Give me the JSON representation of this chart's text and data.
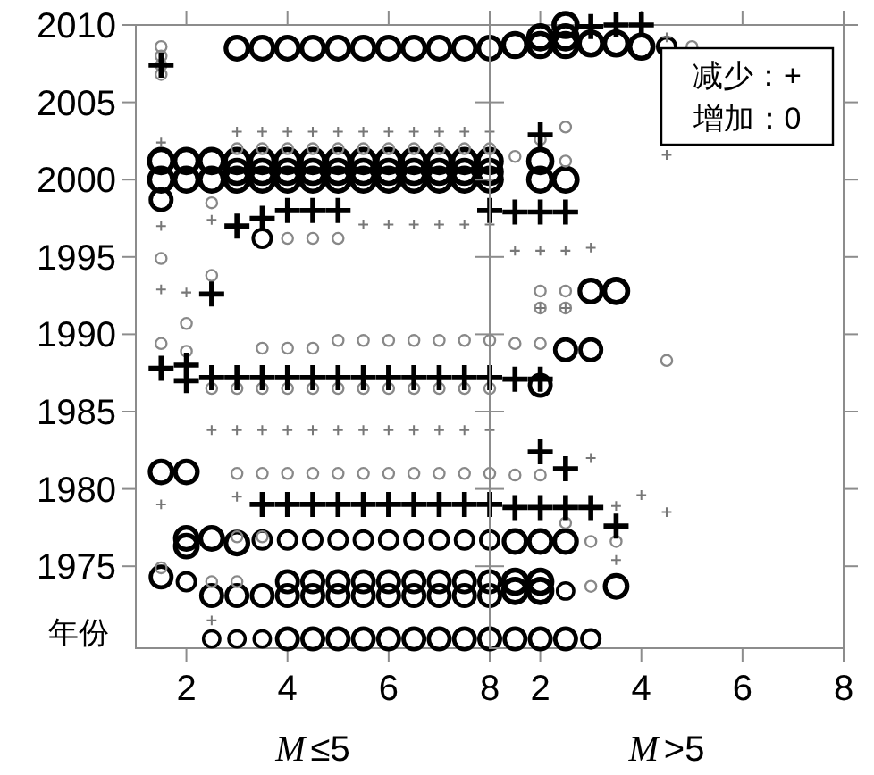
{
  "chart_data": [
    {
      "type": "bubble",
      "xlabel": "M≤5",
      "ylabel": "年份",
      "xlim": [
        1,
        8
      ],
      "xticks": [
        2,
        4,
        6,
        8
      ],
      "ylim": [
        1969.7,
        2010
      ],
      "yticks": [
        1975,
        1980,
        1985,
        1990,
        1995,
        2000,
        2005,
        2010
      ],
      "tick_labels": "xy",
      "series": [
        {
          "color": "#000000",
          "marker": "circle",
          "x": [
            3,
            3.5,
            4,
            4.5,
            5,
            5.5,
            6,
            6.5,
            7,
            7.5,
            8,
            1.5,
            2,
            2.5,
            3,
            3.5,
            4,
            4.5,
            5,
            5.5,
            6,
            6.5,
            7,
            7.5,
            8,
            1.5,
            2,
            2.5,
            3,
            3.5,
            4,
            4.5,
            5,
            5.5,
            6,
            6.5,
            7,
            7.5,
            8,
            3,
            3.5,
            4,
            4.5,
            5,
            5.5,
            6,
            6.5,
            7,
            7.5,
            8,
            1.5,
            3.5,
            1.5,
            2,
            2,
            2,
            2.5,
            3,
            3.5,
            4,
            4.5,
            5,
            5.5,
            6,
            6.5,
            7,
            7.5,
            8,
            1.5,
            2,
            2.5,
            3,
            3.5,
            4,
            4.5,
            5,
            5.5,
            6,
            6.5,
            7,
            7.5,
            8,
            4,
            4.5,
            5,
            5.5,
            6,
            6.5,
            7,
            7.5,
            8,
            2.5,
            3,
            3.5,
            4,
            4.5,
            5,
            5.5,
            6,
            6.5,
            7,
            7.5,
            8
          ],
          "values": [
            2008.5,
            2008.5,
            2008.5,
            2008.5,
            2008.5,
            2008.5,
            2008.5,
            2008.5,
            2008.5,
            2008.5,
            2008.5,
            2001.2,
            2001.2,
            2001.2,
            2001.2,
            2001.2,
            2001.2,
            2001.2,
            2001.2,
            2001.2,
            2001.2,
            2001.2,
            2001.2,
            2001.2,
            2001.2,
            2000,
            2000,
            2000,
            2000,
            2000,
            2000,
            2000,
            2000,
            2000,
            2000,
            2000,
            2000,
            2000,
            2000,
            2000.5,
            2000.5,
            2000.5,
            2000.5,
            2000.5,
            2000.5,
            2000.5,
            2000.5,
            2000.5,
            2000.5,
            2000.5,
            1998.7,
            1996.2,
            1981.1,
            1981.1,
            1976.8,
            1976.3,
            1976.8,
            1976.5,
            1976.7,
            1976.7,
            1976.7,
            1976.7,
            1976.7,
            1976.7,
            1976.7,
            1976.7,
            1976.7,
            1976.7,
            1974.3,
            1974,
            1973.1,
            1973.1,
            1973.1,
            1973.1,
            1973.1,
            1973.1,
            1973.1,
            1973.1,
            1973.1,
            1973.1,
            1973.1,
            1973.1,
            1974,
            1974,
            1974,
            1974,
            1974,
            1974,
            1974,
            1974,
            1974,
            1970.3,
            1970.3,
            1970.3,
            1970.3,
            1970.3,
            1970.3,
            1970.3,
            1970.3,
            1970.3,
            1970.3,
            1970.3,
            1970.3
          ],
          "sizes": [
            0.9,
            0.9,
            0.9,
            0.9,
            0.9,
            0.9,
            0.9,
            0.9,
            0.9,
            0.9,
            0.9,
            1,
            1,
            1,
            1,
            1,
            1,
            1,
            1,
            1,
            1,
            1,
            1,
            1,
            1,
            1,
            1,
            1,
            1,
            1,
            1,
            1,
            1,
            1,
            1,
            1,
            1,
            1,
            1,
            1,
            1,
            1,
            1,
            1,
            1,
            1,
            1,
            1,
            1,
            1,
            0.8,
            0.6,
            0.9,
            0.9,
            0.9,
            0.9,
            0.9,
            0.9,
            0.6,
            0.6,
            0.6,
            0.6,
            0.6,
            0.6,
            0.6,
            0.6,
            0.6,
            0.6,
            0.8,
            0.6,
            0.8,
            0.8,
            0.8,
            0.8,
            0.8,
            0.8,
            0.8,
            0.8,
            0.8,
            0.8,
            0.8,
            0.8,
            0.8,
            0.8,
            0.8,
            0.8,
            0.8,
            0.8,
            0.8,
            0.8,
            0.8,
            0.5,
            0.5,
            0.5,
            0.8,
            0.8,
            0.8,
            0.8,
            0.8,
            0.8,
            0.8,
            0.8,
            0.8
          ]
        },
        {
          "color": "#888888",
          "marker": "circle",
          "x": [
            1.5,
            1.5,
            1.5,
            1.5,
            3,
            3.5,
            4,
            4.5,
            5,
            5.5,
            6,
            6.5,
            7,
            7.5,
            8,
            2.5,
            4,
            4.5,
            5,
            1.5,
            2.5,
            2,
            1.5,
            2,
            3.5,
            4,
            4.5,
            5,
            5.5,
            6,
            6.5,
            7,
            7.5,
            8,
            2.5,
            3,
            3.5,
            4,
            4.5,
            5,
            5.5,
            6,
            6.5,
            7,
            7.5,
            8,
            3,
            3.5,
            4,
            4.5,
            5,
            5.5,
            6,
            6.5,
            7,
            7.5,
            8,
            3,
            3.5,
            1.5,
            2.5,
            3
          ],
          "values": [
            2008.6,
            2008,
            2007.4,
            2006.8,
            2002,
            2002,
            2002,
            2002,
            2002,
            2002,
            2002,
            2002,
            2002,
            2002,
            2002,
            1998.5,
            1996.2,
            1996.2,
            1996.2,
            1994.9,
            1993.8,
            1990.7,
            1989.4,
            1988.9,
            1989.1,
            1989.1,
            1989.1,
            1989.6,
            1989.6,
            1989.6,
            1989.6,
            1989.6,
            1989.6,
            1989.6,
            1986.5,
            1986.5,
            1986.5,
            1986.5,
            1986.5,
            1986.5,
            1986.5,
            1986.5,
            1986.5,
            1986.5,
            1986.5,
            1986.5,
            1981,
            1981,
            1981,
            1981,
            1981,
            1981,
            1981,
            1981,
            1981,
            1981,
            1981,
            1976.9,
            1976.9,
            1974.9,
            1974,
            1974
          ],
          "sizes": [
            0.22,
            0.22,
            0.22,
            0.22,
            0.22,
            0.22,
            0.22,
            0.22,
            0.22,
            0.22,
            0.22,
            0.22,
            0.22,
            0.22,
            0.22,
            0.22,
            0.22,
            0.22,
            0.22,
            0.22,
            0.22,
            0.22,
            0.22,
            0.22,
            0.22,
            0.22,
            0.22,
            0.22,
            0.22,
            0.22,
            0.22,
            0.22,
            0.22,
            0.22,
            0.22,
            0.22,
            0.22,
            0.22,
            0.22,
            0.22,
            0.22,
            0.22,
            0.22,
            0.22,
            0.22,
            0.22,
            0.22,
            0.22,
            0.22,
            0.22,
            0.22,
            0.22,
            0.22,
            0.22,
            0.22,
            0.22,
            0.22,
            0.22,
            0.22,
            0.22,
            0.22,
            0.22
          ]
        },
        {
          "type": "scatter",
          "color": "#000000",
          "marker": "cross",
          "x": [
            1.5,
            3,
            3.5,
            4,
            4.5,
            5,
            8,
            2.5,
            1.5,
            2,
            2,
            2.5,
            3,
            3.5,
            4,
            4.5,
            5,
            5.5,
            6,
            6.5,
            7,
            7.5,
            8,
            3.5,
            4,
            4.5,
            5,
            5.5,
            6,
            6.5,
            7,
            7.5,
            8
          ],
          "values": [
            2007.4,
            1997,
            1997.5,
            1998,
            1998,
            1998,
            1998,
            1992.6,
            1987.8,
            1988,
            1987,
            1987.2,
            1987.2,
            1987.2,
            1987.2,
            1987.2,
            1987.2,
            1987.2,
            1987.2,
            1987.2,
            1987.2,
            1987.2,
            1987.2,
            1979,
            1979,
            1979,
            1979,
            1979,
            1979,
            1979,
            1979,
            1979,
            1979
          ]
        },
        {
          "type": "scatter",
          "color": "#777777",
          "marker": "cross",
          "x": [
            3,
            3.5,
            4,
            4.5,
            5,
            5.5,
            6,
            6.5,
            7,
            7.5,
            8,
            1.5,
            2.5,
            1.5,
            5.5,
            6,
            6.5,
            7,
            7.5,
            8,
            1.5,
            2,
            2.5,
            3,
            3.5,
            4,
            4.5,
            5,
            5.5,
            6,
            6.5,
            7,
            7.5,
            8,
            1.5,
            3,
            2.5
          ],
          "values": [
            2003.1,
            2003.1,
            2003.1,
            2003.1,
            2003.1,
            2003.1,
            2003.1,
            2003.1,
            2003.1,
            2003.1,
            2003.1,
            2002.4,
            1997.4,
            1997,
            1997.1,
            1997.1,
            1997.1,
            1997.1,
            1997.1,
            1997.1,
            1992.9,
            1992.7,
            1983.8,
            1983.8,
            1983.8,
            1983.8,
            1983.8,
            1983.8,
            1983.8,
            1983.8,
            1983.8,
            1983.8,
            1983.8,
            1983.8,
            1979,
            1979.5,
            1971.5
          ]
        }
      ]
    },
    {
      "type": "bubble",
      "xlabel": "M>5",
      "xlim": [
        1,
        8
      ],
      "xticks": [
        2,
        4,
        6,
        8
      ],
      "ylim": [
        1969.7,
        2010
      ],
      "yticks": [
        1975,
        1980,
        1985,
        1990,
        1995,
        2000,
        2005,
        2010
      ],
      "tick_labels": "x",
      "annotations": [
        "减少：+",
        "增加：0"
      ],
      "series": [
        {
          "color": "#000000",
          "marker": "circle",
          "x": [
            1.5,
            2,
            2,
            2.5,
            2.5,
            2.5,
            3,
            3.5,
            4,
            4.5,
            2,
            2,
            2.5,
            3,
            3.5,
            2.5,
            3,
            2,
            1.5,
            2,
            2.5,
            1.5,
            2,
            1.5,
            2,
            2.5,
            3.5,
            1.5,
            2,
            2.5,
            3
          ],
          "values": [
            2008.7,
            2009.2,
            2008.7,
            2010,
            2009.2,
            2008.7,
            2008.8,
            2008.8,
            2008.6,
            2008.6,
            2001.2,
            2000,
            2000,
            1992.8,
            1992.8,
            1989,
            1989,
            1986.7,
            1976.6,
            1976.6,
            1976.6,
            1974,
            1974,
            1973.4,
            1973.4,
            1973.4,
            1973.7,
            1970.3,
            1970.3,
            1970.3,
            1970.3
          ],
          "sizes": [
            1,
            1,
            1,
            1,
            1,
            1,
            1,
            1,
            1,
            0.6,
            1,
            1,
            1,
            0.9,
            1,
            0.8,
            0.8,
            0.8,
            0.9,
            0.9,
            0.9,
            1,
            1,
            1,
            1,
            0.5,
            0.9,
            0.8,
            0.8,
            0.8,
            0.6
          ]
        },
        {
          "color": "#888888",
          "marker": "circle",
          "x": [
            5,
            2,
            2.5,
            1.5,
            2.5,
            2,
            2.5,
            2,
            2.5,
            1.5,
            2,
            4.5,
            1.5,
            2,
            2.5,
            3,
            3.5,
            3
          ],
          "values": [
            2008.6,
            2002.6,
            2003.4,
            2001.5,
            2001.2,
            1992.8,
            1992.8,
            1991.7,
            1991.7,
            1989.4,
            1989.4,
            1988.3,
            1980.9,
            1980.9,
            1977.8,
            1976.6,
            1976.6,
            1973.7
          ],
          "sizes": [
            0.22,
            0.22,
            0.22,
            0.22,
            0.22,
            0.22,
            0.22,
            0.22,
            0.22,
            0.22,
            0.22,
            0.22,
            0.22,
            0.22,
            0.22,
            0.22,
            0.22,
            0.22
          ]
        },
        {
          "type": "scatter",
          "color": "#000000",
          "marker": "cross",
          "x": [
            3,
            3.5,
            4,
            2,
            1.5,
            2,
            2.5,
            1.5,
            2,
            2,
            2.5,
            1.5,
            2,
            2.5,
            3,
            3.5
          ],
          "values": [
            2009.9,
            2010,
            2010,
            2002.9,
            1997.9,
            1997.9,
            1997.9,
            1987.1,
            1987.1,
            1982.4,
            1981.3,
            1978.8,
            1978.8,
            1978.8,
            1978.8,
            1977.6
          ]
        },
        {
          "type": "scatter",
          "color": "#777777",
          "marker": "cross",
          "x": [
            4.5,
            4.5,
            1.5,
            2,
            2.5,
            3,
            3,
            4,
            4.5,
            3.5,
            3.5,
            2,
            2.5
          ],
          "values": [
            2009.2,
            2001.6,
            1995.4,
            1995.4,
            1995.4,
            1995.6,
            1982,
            1979.6,
            1978.5,
            1978.9,
            1975.4,
            1991.7,
            1991.7
          ]
        }
      ]
    }
  ]
}
